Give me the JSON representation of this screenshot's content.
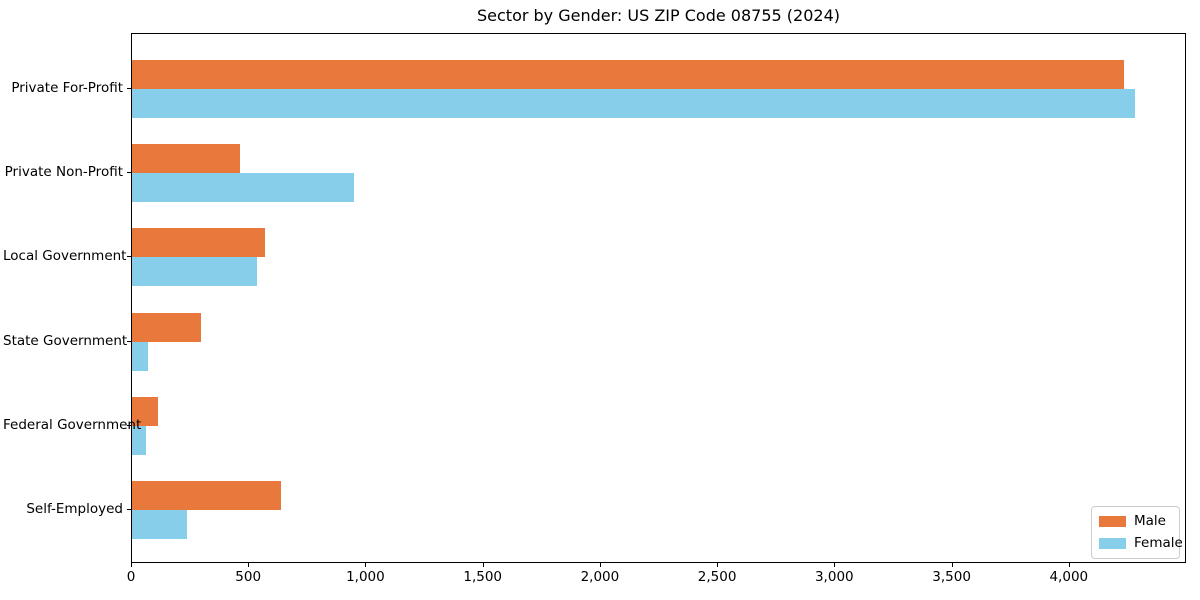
{
  "title": "Sector by Gender: US ZIP Code 08755 (2024)",
  "colors": {
    "male": "#e8783c",
    "female": "#87ceeb",
    "axis": "#000000",
    "legend_border": "#cccccc",
    "background": "#ffffff"
  },
  "legend": {
    "position": "lower right",
    "items": [
      {
        "label": "Male",
        "color": "#e8783c"
      },
      {
        "label": "Female",
        "color": "#87ceeb"
      }
    ]
  },
  "chart_data": {
    "type": "bar",
    "orientation": "horizontal",
    "title": "Sector by Gender: US ZIP Code 08755 (2024)",
    "xlabel": "",
    "ylabel": "",
    "categories": [
      "Private For-Profit",
      "Private Non-Profit",
      "Local Government",
      "State Government",
      "Federal Government",
      "Self-Employed"
    ],
    "series": [
      {
        "name": "Male",
        "color": "#e8783c",
        "values": [
          4230,
          460,
          565,
          295,
          110,
          635
        ]
      },
      {
        "name": "Female",
        "color": "#87ceeb",
        "values": [
          4280,
          945,
          535,
          70,
          60,
          235
        ]
      }
    ],
    "xlim": [
      0,
      4500
    ],
    "x_ticks": [
      0,
      500,
      1000,
      1500,
      2000,
      2500,
      3000,
      3500,
      4000
    ],
    "x_tick_labels": [
      "0",
      "500",
      "1,000",
      "1,500",
      "2,000",
      "2,500",
      "3,000",
      "3,500",
      "4,000"
    ],
    "grid": false,
    "legend_position": "lower right"
  }
}
